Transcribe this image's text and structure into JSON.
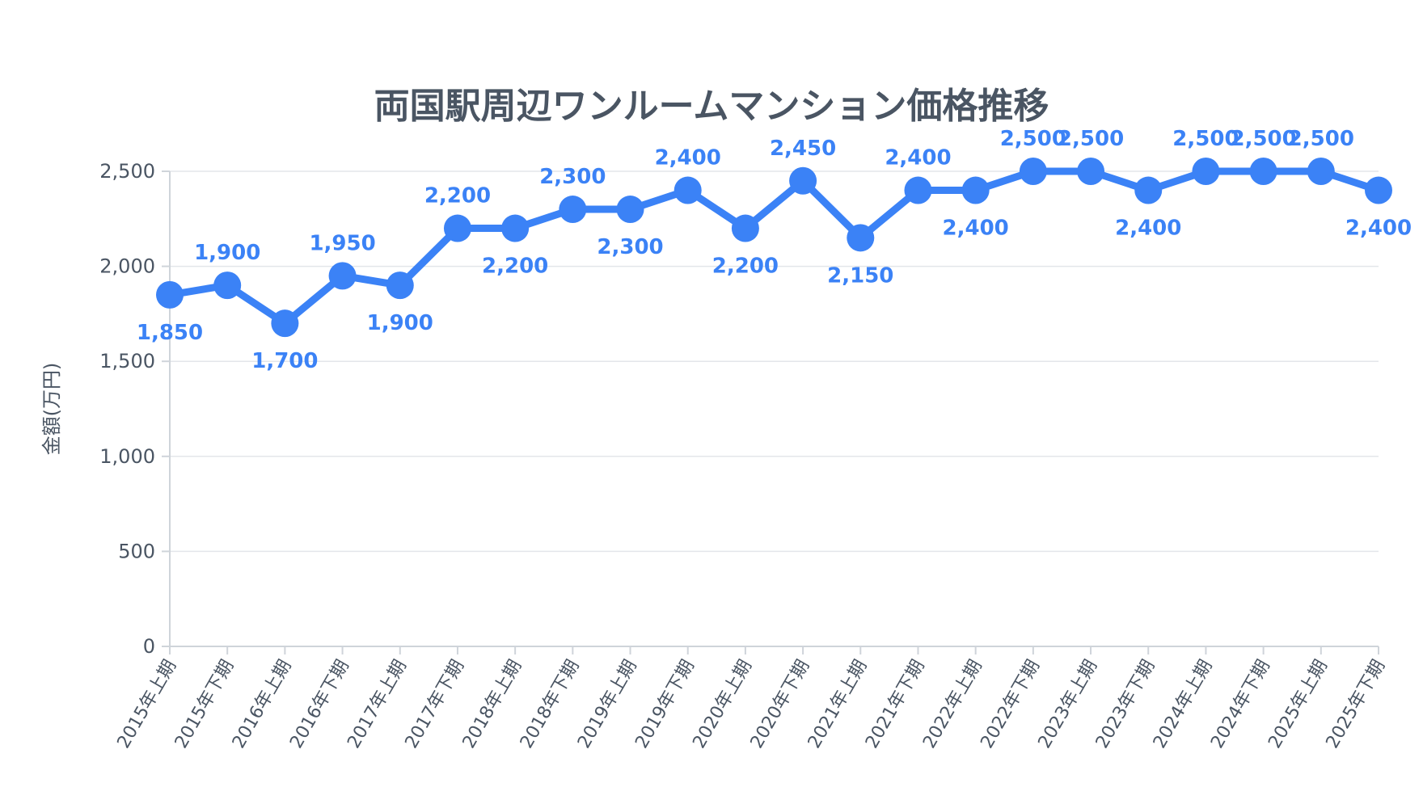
{
  "chart_data": {
    "type": "line",
    "title": "両国駅周辺ワンルームマンション価格推移",
    "ylabel": "金額(万円)",
    "xlabel": "",
    "ylim": [
      0,
      2500
    ],
    "yticks": [
      "0",
      "500",
      "1,000",
      "1,500",
      "2,000",
      "2,500"
    ],
    "grid": true,
    "categories": [
      "2015年上期",
      "2015年下期",
      "2016年上期",
      "2016年下期",
      "2017年上期",
      "2017年下期",
      "2018年上期",
      "2018年下期",
      "2019年上期",
      "2019年下期",
      "2020年上期",
      "2020年下期",
      "2021年上期",
      "2021年下期",
      "2022年上期",
      "2022年下期",
      "2023年上期",
      "2023年下期",
      "2024年上期",
      "2024年下期",
      "2025年上期",
      "2025年下期"
    ],
    "values": [
      1850,
      1900,
      1700,
      1950,
      1900,
      2200,
      2200,
      2300,
      2300,
      2400,
      2200,
      2450,
      2150,
      2400,
      2400,
      2500,
      2500,
      2400,
      2500,
      2500,
      2500,
      2400
    ],
    "data_labels": [
      "1,850",
      "1,900",
      "1,700",
      "1,950",
      "1,900",
      "2,200",
      "2,200",
      "2,300",
      "2,300",
      "2,400",
      "2,200",
      "2,450",
      "2,150",
      "2,400",
      "2,400",
      "2,500",
      "2,500",
      "2,400",
      "2,500",
      "2,500",
      "2,500",
      "2,400"
    ],
    "color": "#3b82f6"
  }
}
